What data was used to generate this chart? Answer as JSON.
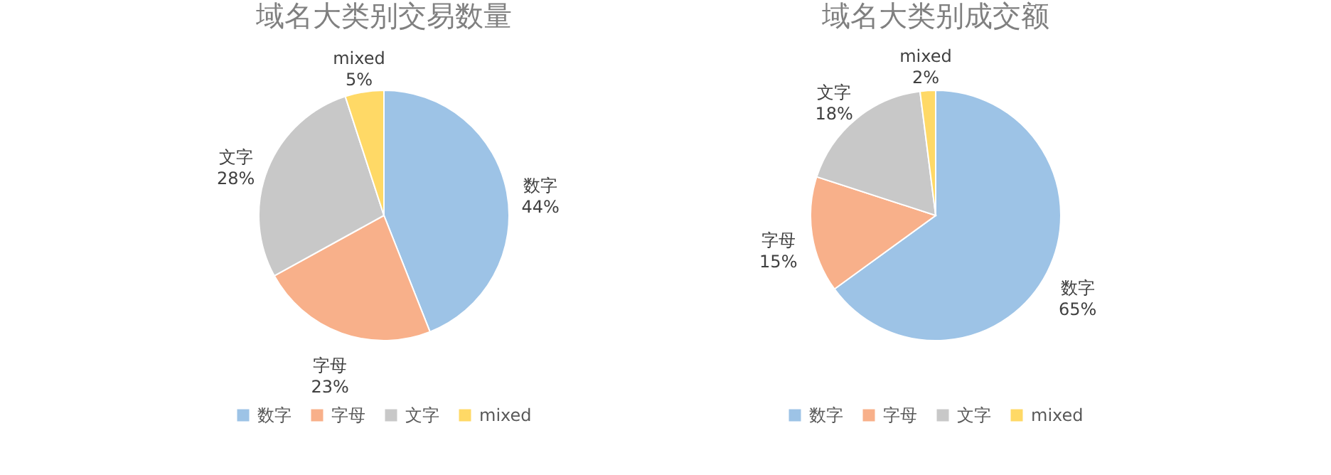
{
  "chart_data": [
    {
      "type": "pie",
      "title": "域名大类别交易数量",
      "categories": [
        "数字",
        "字母",
        "文字",
        "mixed"
      ],
      "values": [
        44,
        23,
        28,
        5
      ],
      "value_labels": [
        "44%",
        "23%",
        "28%",
        "5%"
      ],
      "colors": [
        "#9dc3e6",
        "#f8b08a",
        "#c8c8c8",
        "#ffd966"
      ],
      "legend": "bottom"
    },
    {
      "type": "pie",
      "title": "域名大类别成交额",
      "categories": [
        "数字",
        "字母",
        "文字",
        "mixed"
      ],
      "values": [
        65,
        15,
        18,
        2
      ],
      "value_labels": [
        "65%",
        "15%",
        "18%",
        "2%"
      ],
      "colors": [
        "#9dc3e6",
        "#f8b08a",
        "#c8c8c8",
        "#ffd966"
      ],
      "legend": "bottom"
    }
  ]
}
